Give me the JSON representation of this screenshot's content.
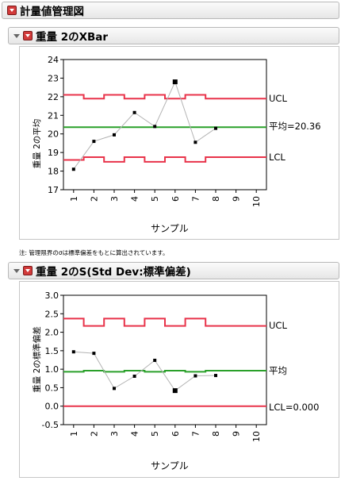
{
  "report": {
    "title": "計量値管理図"
  },
  "xbar_chart": {
    "title": "重量 2のXBar",
    "y_label": "重量 2の平均",
    "x_label": "サンプル",
    "ucl_label": "UCL",
    "center_label": "平均=20.36",
    "lcl_label": "LCL",
    "note": "注: 管理限界のσは標準偏差をもとに算出されています。"
  },
  "s_chart": {
    "title": "重量 2のS(Std Dev:標準偏差)",
    "y_label": "重量 2の標準偏差",
    "x_label": "サンプル",
    "ucl_label": "UCL",
    "center_label": "平均",
    "lcl_label": "LCL=0.000"
  },
  "colors": {
    "limit": "#e8334a",
    "center": "#2aa02a",
    "data_line": "#b4b4b4",
    "point": "#000000"
  },
  "chart_data": [
    {
      "type": "line",
      "name": "xbar",
      "x": [
        1,
        2,
        3,
        4,
        5,
        6,
        7,
        8
      ],
      "values": [
        18.1,
        19.6,
        19.95,
        21.15,
        20.4,
        22.8,
        19.55,
        20.3
      ],
      "center": 20.36,
      "ucl_steps": [
        22.1,
        21.9,
        22.1,
        21.9,
        22.1,
        21.9,
        22.1,
        21.9,
        21.9,
        21.9
      ],
      "lcl_steps": [
        18.6,
        18.75,
        18.5,
        18.75,
        18.5,
        18.75,
        18.5,
        18.75,
        18.75,
        18.75
      ],
      "xlim": [
        0.5,
        10.5
      ],
      "ylim": [
        17,
        24
      ],
      "y_ticks": [
        17,
        18,
        19,
        20,
        21,
        22,
        23,
        24
      ],
      "x_ticks": [
        "1",
        "2",
        "3",
        "4",
        "5",
        "6",
        "7",
        "8",
        "9",
        "10"
      ],
      "y_tick_labels": [
        "17",
        "18",
        "19",
        "20",
        "21",
        "22",
        "23",
        "24"
      ],
      "highlight_index": 5
    },
    {
      "type": "line",
      "name": "s",
      "x": [
        1,
        2,
        3,
        4,
        5,
        6,
        7,
        8
      ],
      "values": [
        1.47,
        1.43,
        0.48,
        0.81,
        1.24,
        0.42,
        0.82,
        0.83
      ],
      "center_steps": [
        0.93,
        0.96,
        0.93,
        0.96,
        0.93,
        0.96,
        0.93,
        0.96,
        0.96,
        0.96
      ],
      "ucl_steps": [
        2.37,
        2.17,
        2.37,
        2.17,
        2.37,
        2.17,
        2.37,
        2.17,
        2.17,
        2.17
      ],
      "lcl": 0.0,
      "xlim": [
        0.5,
        10.5
      ],
      "ylim": [
        -0.5,
        3.0
      ],
      "y_ticks": [
        -0.5,
        0,
        0.5,
        1,
        1.5,
        2,
        2.5,
        3
      ],
      "x_ticks": [
        "1",
        "2",
        "3",
        "4",
        "5",
        "6",
        "7",
        "8",
        "9",
        "10"
      ],
      "y_tick_labels": [
        "-0.5",
        "0.0",
        "0.5",
        "1.0",
        "1.5",
        "2.0",
        "2.5",
        "3.0"
      ],
      "highlight_index": 5
    }
  ]
}
